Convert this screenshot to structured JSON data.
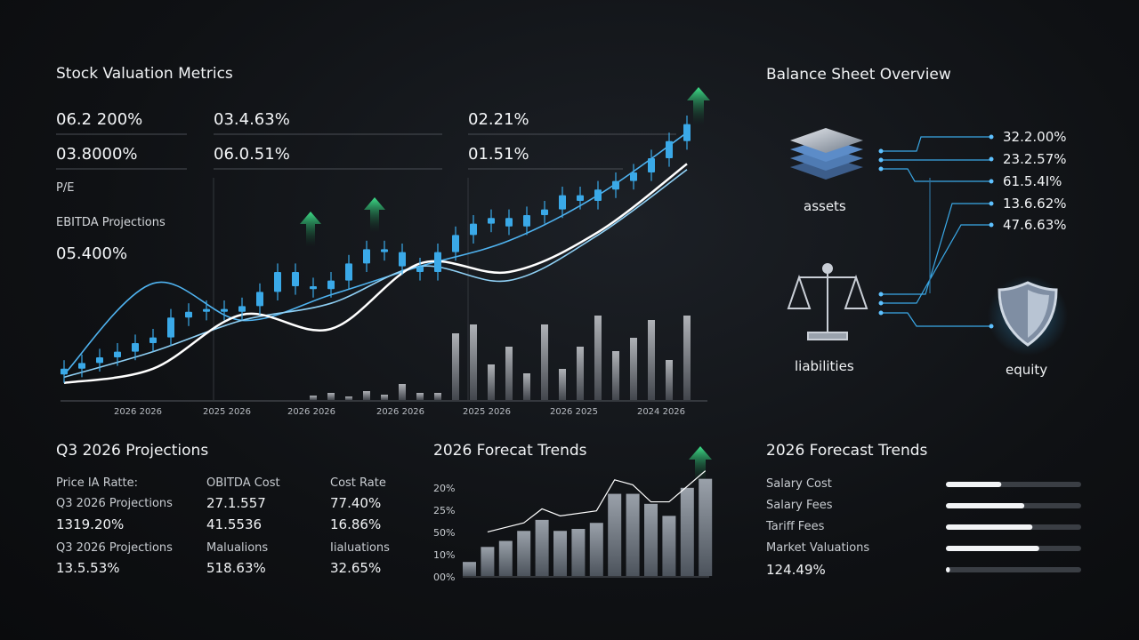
{
  "valuation": {
    "title": "Stock Valuation Metrics",
    "metrics": [
      "06.2 200%",
      "03.4.63%",
      "02.21%",
      "03.8000%",
      "06.0.51%",
      "01.51%"
    ],
    "pe_label": "P/E",
    "ebitda_label": "EBITDA Projections",
    "ebitda_value": "05.400%",
    "chart": {
      "type": "candlestick",
      "ylim": [
        0,
        100
      ],
      "x_labels": [
        "2026 2026",
        "2025 2026",
        "2026 2026",
        "2026 2026",
        "2025 2026",
        "2026 2025",
        "2024 2026"
      ],
      "open": [
        9,
        11,
        13,
        15,
        17,
        20,
        22,
        29,
        31,
        32,
        31,
        33,
        38,
        45,
        40,
        39,
        42,
        48,
        53,
        52,
        47,
        45,
        52,
        58,
        62,
        64,
        61,
        65,
        67,
        72,
        70,
        74,
        77,
        80,
        85,
        91
      ],
      "high": [
        14,
        16,
        18,
        20,
        23,
        25,
        32,
        34,
        35,
        35,
        36,
        41,
        48,
        48,
        43,
        45,
        51,
        56,
        56,
        55,
        50,
        55,
        61,
        65,
        67,
        67,
        68,
        70,
        75,
        75,
        77,
        80,
        83,
        88,
        94,
        100
      ],
      "low": [
        6,
        8,
        10,
        12,
        14,
        17,
        19,
        26,
        28,
        28,
        28,
        30,
        35,
        37,
        36,
        36,
        39,
        45,
        49,
        44,
        42,
        42,
        49,
        55,
        59,
        58,
        58,
        62,
        64,
        67,
        67,
        71,
        74,
        77,
        82,
        88
      ],
      "close": [
        11,
        13,
        15,
        17,
        20,
        22,
        29,
        31,
        32,
        31,
        33,
        38,
        45,
        40,
        39,
        42,
        48,
        53,
        52,
        47,
        45,
        52,
        58,
        62,
        64,
        61,
        65,
        67,
        72,
        70,
        74,
        77,
        80,
        85,
        91,
        97
      ],
      "color": "#3aa9e8",
      "lines": {
        "x": [
          0,
          5,
          10,
          15,
          20,
          25,
          30,
          35
        ],
        "series": [
          {
            "color": "#4fb3f0",
            "values": [
              9,
              41,
              28,
              37,
              47,
              56,
              72,
              94
            ]
          },
          {
            "color": "#8fd0f5",
            "values": [
              8,
              17,
              28,
              34,
              47,
              42,
              58,
              81
            ]
          },
          {
            "color": "#ffffff",
            "values": [
              6,
              11,
              30,
              25,
              48,
              45,
              59,
              83
            ]
          }
        ]
      },
      "volume": {
        "ylim": [
          0,
          100
        ],
        "color": "#8a8f96",
        "x": [
          14,
          15,
          16,
          17,
          18,
          19,
          20,
          21,
          22,
          23,
          24,
          25,
          26,
          27,
          28,
          29,
          30,
          31,
          32,
          33,
          34,
          35
        ],
        "values": [
          5,
          8,
          4,
          10,
          6,
          18,
          8,
          8,
          75,
          85,
          40,
          60,
          30,
          85,
          35,
          60,
          95,
          55,
          70,
          90,
          45,
          95
        ]
      }
    }
  },
  "balance": {
    "title": "Balance Sheet Overview",
    "values": [
      "32.2.00%",
      "23.2.57%",
      "61.5.4I%",
      "13.6.62%",
      "47.6.63%"
    ],
    "labels": [
      "assets",
      "liabilities",
      "equity"
    ]
  },
  "projections": {
    "title": "Q3 2026 Projections",
    "rows": [
      [
        "Price IA Ratte:",
        "OBITDA Cost",
        "Cost Rate"
      ],
      [
        "Q3 2026 Projections",
        "27.1.557",
        "77.40%"
      ],
      [
        "1319.20%",
        "41.5536",
        "16.86%"
      ],
      [
        "Q3 2026 Projections",
        "Malualions",
        "Iialuations"
      ],
      [
        "13.5.53%",
        "518.63%",
        "32.65%"
      ]
    ]
  },
  "forecast": {
    "title": "2026 Forecat Trends",
    "axis_labels": [
      "20%",
      "25%",
      "50%",
      "10%",
      "00%"
    ],
    "chart": {
      "type": "bar",
      "ylim": [
        0,
        110
      ],
      "values": [
        14,
        29,
        35,
        45,
        56,
        45,
        47,
        53,
        82,
        82,
        72,
        60,
        88,
        97
      ],
      "line_x": [
        1,
        3,
        4,
        5,
        7,
        8,
        9,
        10,
        11,
        13
      ],
      "line": [
        44,
        53,
        67,
        60,
        65,
        96,
        91,
        74,
        74,
        105
      ]
    }
  },
  "trends": {
    "title": "2026 Forecast Trends",
    "labels": [
      "Salary Cost",
      "Salary Fees",
      "Tariff Fees",
      "Market Valuations"
    ],
    "value": "124.49%",
    "max": 100,
    "progress": [
      41,
      58,
      64,
      69,
      3
    ]
  }
}
